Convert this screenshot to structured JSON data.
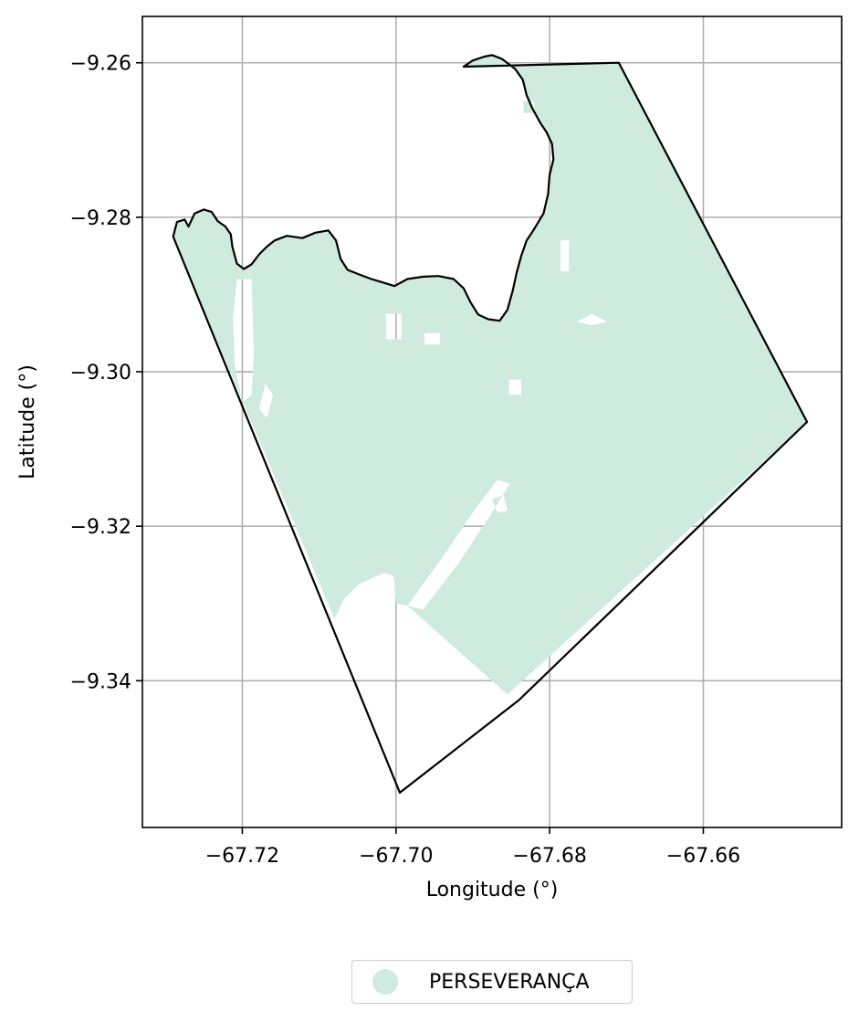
{
  "chart_data": {
    "type": "map",
    "xlabel": "Longitude (°)",
    "ylabel": "Latitude (°)",
    "xlim": [
      -67.733,
      -67.642
    ],
    "ylim": [
      -9.359,
      -9.254
    ],
    "xticks": [
      -67.72,
      -67.7,
      -67.68,
      -67.66
    ],
    "yticks": [
      -9.26,
      -9.28,
      -9.3,
      -9.32,
      -9.34
    ],
    "xtick_labels": [
      "−67.72",
      "−67.70",
      "−67.68",
      "−67.66"
    ],
    "ytick_labels": [
      "−9.26",
      "−9.28",
      "−9.30",
      "−9.32",
      "−9.34"
    ],
    "grid": true,
    "legend_position": "bottom-center",
    "fill_color": "#cfeade",
    "outline_color": "#000000",
    "grid_color": "#b0b0b0",
    "legend": [
      {
        "label": "PERSEVERANÇA",
        "color": "#cfeade"
      }
    ],
    "outline": [
      [
        -67.729,
        -9.2825
      ],
      [
        -67.7285,
        -9.2806
      ],
      [
        -67.7275,
        -9.2803
      ],
      [
        -67.727,
        -9.2812
      ],
      [
        -67.7262,
        -9.2795
      ],
      [
        -67.725,
        -9.279
      ],
      [
        -67.724,
        -9.2793
      ],
      [
        -67.7232,
        -9.2805
      ],
      [
        -67.7222,
        -9.2812
      ],
      [
        -67.7215,
        -9.2822
      ],
      [
        -67.7213,
        -9.2838
      ],
      [
        -67.7207,
        -9.286
      ],
      [
        -67.7198,
        -9.2867
      ],
      [
        -67.7188,
        -9.2861
      ],
      [
        -67.7178,
        -9.2848
      ],
      [
        -67.7168,
        -9.2838
      ],
      [
        -67.7158,
        -9.283
      ],
      [
        -67.7142,
        -9.2824
      ],
      [
        -67.7122,
        -9.2827
      ],
      [
        -67.7105,
        -9.282
      ],
      [
        -67.7088,
        -9.2817
      ],
      [
        -67.7078,
        -9.283
      ],
      [
        -67.7072,
        -9.2854
      ],
      [
        -67.7063,
        -9.2868
      ],
      [
        -67.7048,
        -9.2874
      ],
      [
        -67.7032,
        -9.288
      ],
      [
        -67.7015,
        -9.2885
      ],
      [
        -67.7002,
        -9.2889
      ],
      [
        -67.6985,
        -9.288
      ],
      [
        -67.6965,
        -9.2877
      ],
      [
        -67.6945,
        -9.2876
      ],
      [
        -67.6925,
        -9.288
      ],
      [
        -67.6912,
        -9.2892
      ],
      [
        -67.6903,
        -9.291
      ],
      [
        -67.6893,
        -9.2926
      ],
      [
        -67.688,
        -9.2932
      ],
      [
        -67.6865,
        -9.2934
      ],
      [
        -67.6855,
        -9.292
      ],
      [
        -67.6848,
        -9.2895
      ],
      [
        -67.6843,
        -9.2872
      ],
      [
        -67.6837,
        -9.285
      ],
      [
        -67.683,
        -9.283
      ],
      [
        -67.682,
        -9.2815
      ],
      [
        -67.6808,
        -9.2795
      ],
      [
        -67.6802,
        -9.277
      ],
      [
        -67.68,
        -9.2745
      ],
      [
        -67.6795,
        -9.2725
      ],
      [
        -67.6797,
        -9.2705
      ],
      [
        -67.6804,
        -9.269
      ],
      [
        -67.6812,
        -9.2678
      ],
      [
        -67.6822,
        -9.266
      ],
      [
        -67.683,
        -9.2642
      ],
      [
        -67.6835,
        -9.2622
      ],
      [
        -67.6845,
        -9.2608
      ],
      [
        -67.6862,
        -9.2595
      ],
      [
        -67.6875,
        -9.259
      ],
      [
        -67.6885,
        -9.2592
      ],
      [
        -67.69,
        -9.2597
      ],
      [
        -67.6912,
        -9.2605
      ],
      [
        -67.671,
        -9.26
      ],
      [
        -67.6465,
        -9.3065
      ],
      [
        -67.684,
        -9.3425
      ],
      [
        -67.6995,
        -9.3545
      ],
      [
        -67.729,
        -9.2825
      ]
    ],
    "coverage": [
      [
        -67.729,
        -9.2825
      ],
      [
        -67.7285,
        -9.2806
      ],
      [
        -67.7275,
        -9.2803
      ],
      [
        -67.727,
        -9.2812
      ],
      [
        -67.7262,
        -9.2795
      ],
      [
        -67.725,
        -9.279
      ],
      [
        -67.724,
        -9.2793
      ],
      [
        -67.7232,
        -9.2805
      ],
      [
        -67.7222,
        -9.2812
      ],
      [
        -67.7215,
        -9.2822
      ],
      [
        -67.7213,
        -9.2838
      ],
      [
        -67.7207,
        -9.286
      ],
      [
        -67.7198,
        -9.2867
      ],
      [
        -67.7188,
        -9.2861
      ],
      [
        -67.7178,
        -9.2848
      ],
      [
        -67.7168,
        -9.2838
      ],
      [
        -67.7158,
        -9.283
      ],
      [
        -67.7142,
        -9.2824
      ],
      [
        -67.7122,
        -9.2827
      ],
      [
        -67.7105,
        -9.282
      ],
      [
        -67.7088,
        -9.2817
      ],
      [
        -67.7078,
        -9.283
      ],
      [
        -67.7072,
        -9.2854
      ],
      [
        -67.7063,
        -9.2868
      ],
      [
        -67.7048,
        -9.2874
      ],
      [
        -67.7032,
        -9.288
      ],
      [
        -67.7015,
        -9.2885
      ],
      [
        -67.7002,
        -9.2889
      ],
      [
        -67.6985,
        -9.288
      ],
      [
        -67.6965,
        -9.2877
      ],
      [
        -67.6945,
        -9.2876
      ],
      [
        -67.6925,
        -9.288
      ],
      [
        -67.6912,
        -9.2892
      ],
      [
        -67.6903,
        -9.291
      ],
      [
        -67.6893,
        -9.2926
      ],
      [
        -67.688,
        -9.2932
      ],
      [
        -67.6865,
        -9.2934
      ],
      [
        -67.6855,
        -9.292
      ],
      [
        -67.6848,
        -9.2895
      ],
      [
        -67.6843,
        -9.2872
      ],
      [
        -67.6837,
        -9.285
      ],
      [
        -67.683,
        -9.283
      ],
      [
        -67.682,
        -9.2815
      ],
      [
        -67.6808,
        -9.2795
      ],
      [
        -67.6802,
        -9.277
      ],
      [
        -67.68,
        -9.2745
      ],
      [
        -67.6795,
        -9.2725
      ],
      [
        -67.6797,
        -9.2705
      ],
      [
        -67.6804,
        -9.269
      ],
      [
        -67.6812,
        -9.2678
      ],
      [
        -67.6822,
        -9.266
      ],
      [
        -67.683,
        -9.2642
      ],
      [
        -67.6835,
        -9.2622
      ],
      [
        -67.6845,
        -9.2608
      ],
      [
        -67.6862,
        -9.2595
      ],
      [
        -67.6875,
        -9.259
      ],
      [
        -67.6885,
        -9.2592
      ],
      [
        -67.69,
        -9.2597
      ],
      [
        -67.6912,
        -9.2605
      ],
      [
        -67.671,
        -9.26
      ],
      [
        -67.6465,
        -9.3065
      ],
      [
        -67.6855,
        -9.3418
      ],
      [
        -67.6985,
        -9.3303
      ],
      [
        -67.7,
        -9.33
      ],
      [
        -67.7003,
        -9.3265
      ],
      [
        -67.7015,
        -9.326
      ],
      [
        -67.7048,
        -9.3275
      ],
      [
        -67.7068,
        -9.3295
      ],
      [
        -67.708,
        -9.332
      ],
      [
        -67.729,
        -9.2825
      ]
    ],
    "gaps": [
      [
        [
          -67.6985,
          -9.3303
        ],
        [
          -67.6938,
          -9.3238
        ],
        [
          -67.6895,
          -9.3175
        ],
        [
          -67.6868,
          -9.314
        ],
        [
          -67.6852,
          -9.3145
        ],
        [
          -67.688,
          -9.319
        ],
        [
          -67.692,
          -9.325
        ],
        [
          -67.6965,
          -9.3308
        ]
      ],
      [
        [
          -67.7207,
          -9.288
        ],
        [
          -67.7188,
          -9.288
        ],
        [
          -67.7185,
          -9.298
        ],
        [
          -67.7188,
          -9.303
        ],
        [
          -67.72,
          -9.304
        ],
        [
          -67.721,
          -9.299
        ],
        [
          -67.7212,
          -9.293
        ]
      ],
      [
        [
          -67.717,
          -9.3015
        ],
        [
          -67.716,
          -9.303
        ],
        [
          -67.7168,
          -9.306
        ],
        [
          -67.7178,
          -9.3048
        ]
      ],
      [
        [
          -67.7013,
          -9.2925
        ],
        [
          -67.6993,
          -9.2925
        ],
        [
          -67.6993,
          -9.2958
        ],
        [
          -67.7013,
          -9.2958
        ]
      ],
      [
        [
          -67.6963,
          -9.295
        ],
        [
          -67.6943,
          -9.295
        ],
        [
          -67.6943,
          -9.2965
        ],
        [
          -67.6963,
          -9.2965
        ]
      ],
      [
        [
          -67.6853,
          -9.301
        ],
        [
          -67.6837,
          -9.301
        ],
        [
          -67.6837,
          -9.303
        ],
        [
          -67.6853,
          -9.303
        ]
      ],
      [
        [
          -67.6875,
          -9.3165
        ],
        [
          -67.686,
          -9.316
        ],
        [
          -67.6855,
          -9.318
        ],
        [
          -67.6868,
          -9.3182
        ]
      ],
      [
        [
          -67.6765,
          -9.2935
        ],
        [
          -67.6745,
          -9.2925
        ],
        [
          -67.6725,
          -9.2935
        ],
        [
          -67.6745,
          -9.294
        ]
      ],
      [
        [
          -67.6786,
          -9.283
        ],
        [
          -67.6775,
          -9.283
        ],
        [
          -67.6775,
          -9.287
        ],
        [
          -67.6786,
          -9.287
        ]
      ],
      [
        [
          -67.6834,
          -9.265
        ],
        [
          -67.682,
          -9.265
        ],
        [
          -67.682,
          -9.2665
        ],
        [
          -67.6834,
          -9.2665
        ]
      ]
    ]
  }
}
